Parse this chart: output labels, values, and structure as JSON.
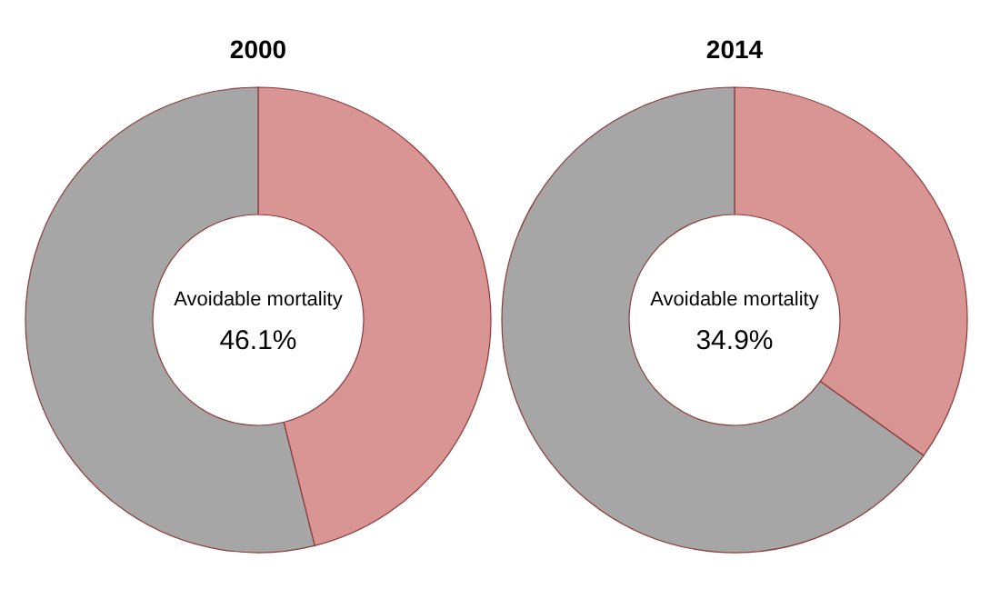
{
  "chart_data": [
    {
      "type": "donut",
      "title": "2000",
      "categories": [
        null,
        null
      ],
      "values": [
        46.1,
        53.9
      ],
      "colors": [
        "#d99594",
        "#a6a6a6"
      ],
      "annotations": [
        "Avoidable mortality",
        "46.1%"
      ]
    },
    {
      "type": "donut",
      "title": "2014",
      "categories": [
        null,
        null
      ],
      "values": [
        34.9,
        65.1
      ],
      "colors": [
        "#d99594",
        "#a6a6a6"
      ],
      "annotations": [
        "Avoidable mortality",
        "34.9%"
      ]
    }
  ]
}
